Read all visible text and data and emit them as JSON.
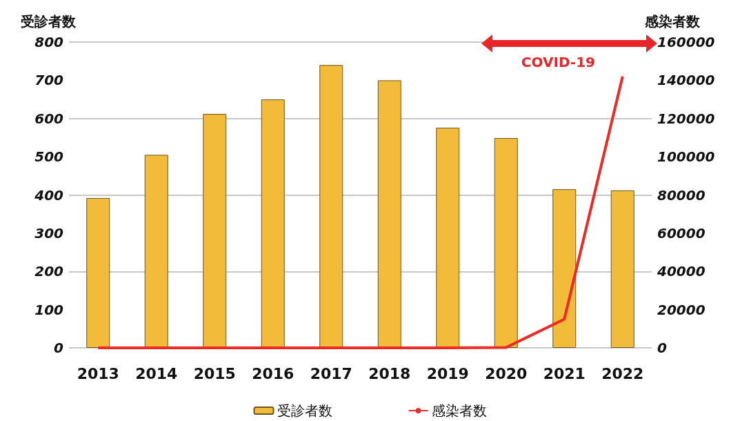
{
  "chart_data": {
    "type": "bar",
    "ylabel": "受診者数",
    "y2label": "感染者数",
    "categories": [
      "2013",
      "2014",
      "2015",
      "2016",
      "2017",
      "2018",
      "2019",
      "2020",
      "2021",
      "2022"
    ],
    "series": [
      {
        "name": "受診者数",
        "color": "#f2bc3a",
        "values": [
          392,
          505,
          612,
          650,
          740,
          700,
          576,
          549,
          415,
          412
        ]
      },
      {
        "name": "感染者数",
        "type": "line",
        "axis": "y2",
        "color": "#ee2a24",
        "marker": "none",
        "values": [
          0,
          0,
          0,
          0,
          0,
          0,
          0,
          200,
          15000,
          142000
        ]
      }
    ],
    "ylim": [
      0,
      800
    ],
    "yticks": [
      0,
      100,
      200,
      300,
      400,
      500,
      600,
      700,
      800
    ],
    "y2lim": [
      0,
      160000
    ],
    "y2ticks": [
      0,
      20000,
      40000,
      60000,
      80000,
      100000,
      120000,
      140000,
      160000
    ],
    "annotations": [
      "COVID-19"
    ],
    "grid": "y",
    "legend": "bottom"
  }
}
